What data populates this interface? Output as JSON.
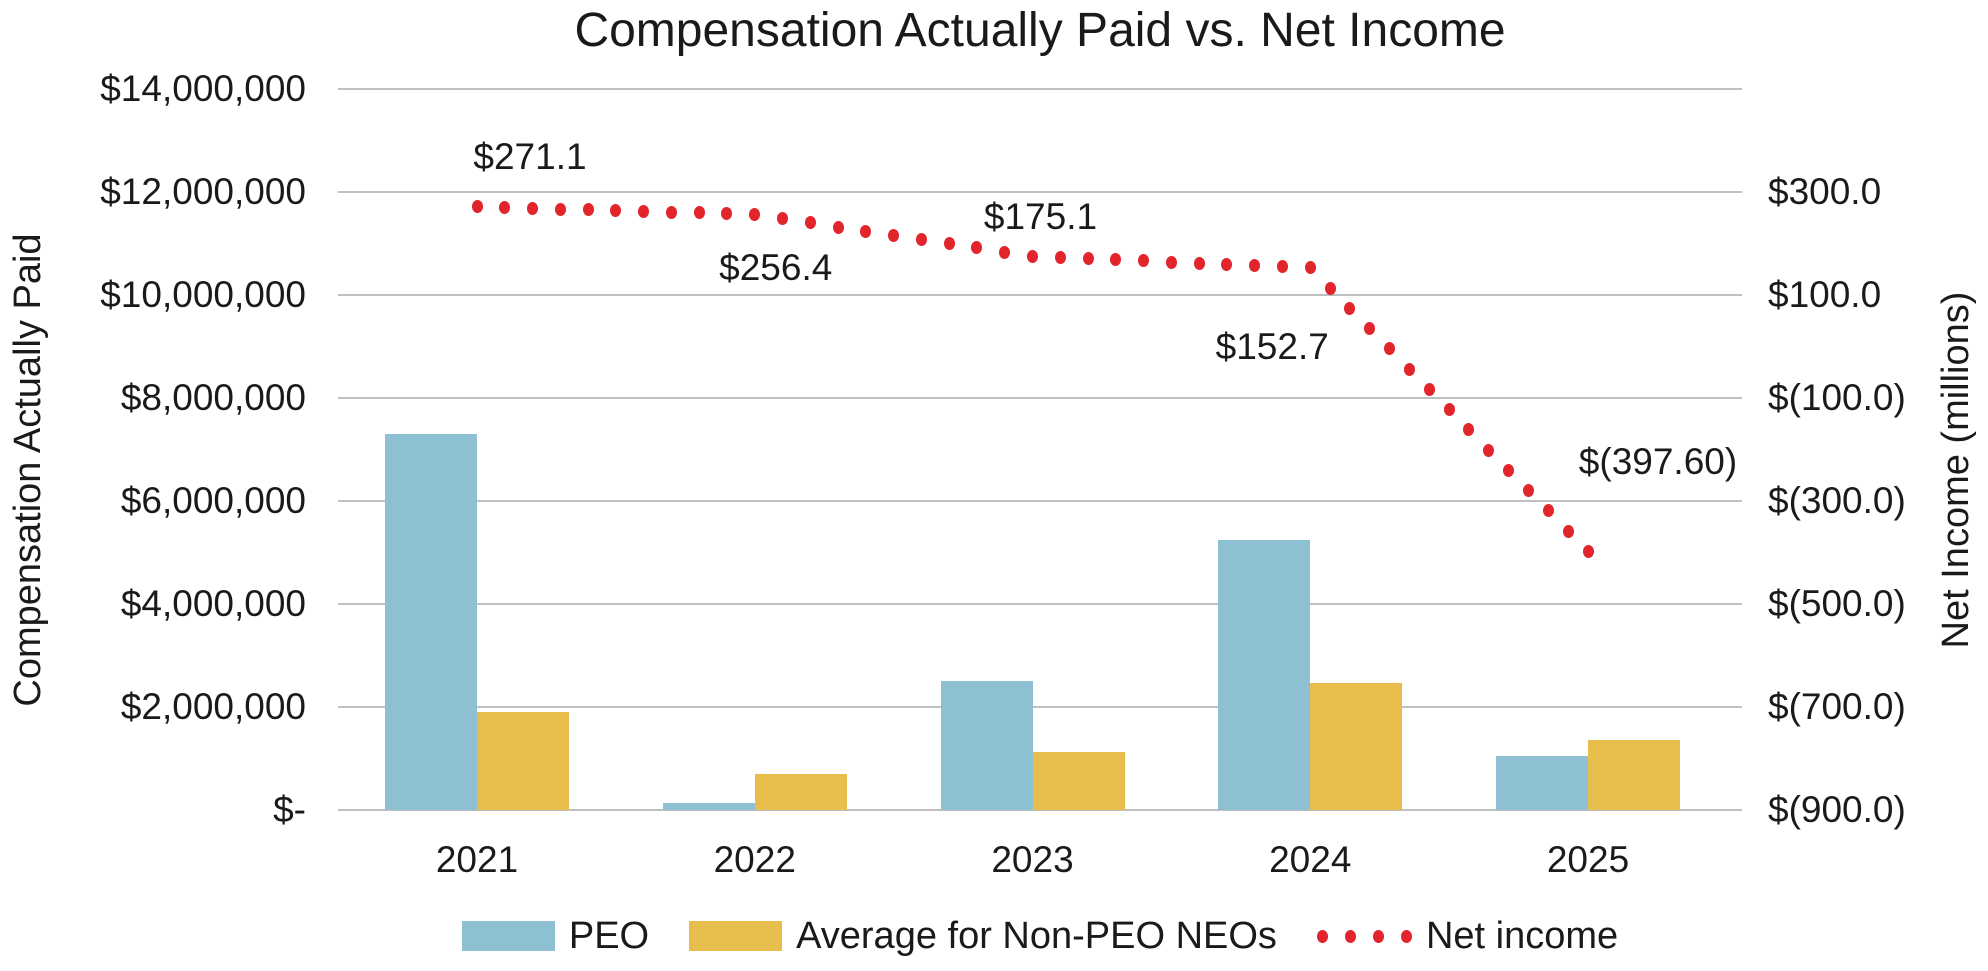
{
  "chart_data": {
    "type": "combo-bar-line",
    "title": "Compensation Actually Paid vs. Net Income",
    "categories": [
      "2021",
      "2022",
      "2023",
      "2024",
      "2025"
    ],
    "series": [
      {
        "name": "PEO",
        "type": "bar",
        "axis": "left",
        "color": "#8EC0D3",
        "values": [
          7300000,
          130000,
          2500000,
          5250000,
          1050000
        ]
      },
      {
        "name": "Average for Non-PEO NEOs",
        "type": "bar",
        "axis": "left",
        "color": "#E7BD4B",
        "values": [
          1900000,
          700000,
          1120000,
          2460000,
          1360000
        ]
      },
      {
        "name": "Net income",
        "type": "dotted-line",
        "axis": "right",
        "color": "#E2242B",
        "values": [
          271.1,
          256.4,
          175.1,
          152.7,
          -397.6
        ],
        "point_labels": [
          "$271.1",
          "$256.4",
          "$175.1",
          "$152.7",
          "$(397.60)"
        ]
      }
    ],
    "left_axis": {
      "title": "Compensation Actually Paid",
      "min": 0,
      "max": 14000000,
      "tick_step": 2000000,
      "tick_labels": [
        "$14,000,000",
        "$12,000,000",
        "$10,000,000",
        "$8,000,000",
        "$6,000,000",
        "$4,000,000",
        "$2,000,000",
        "$-"
      ]
    },
    "right_axis": {
      "title": "Net Income (millions)",
      "min": -900,
      "max": 300,
      "tick_step": 200,
      "tick_labels": [
        "$300.0",
        "$100.0",
        "$(100.0)",
        "$(300.0)",
        "$(500.0)",
        "$(700.0)",
        "$(900.0)"
      ]
    },
    "x_axis": {
      "tick_labels": [
        "2021",
        "2022",
        "2023",
        "2024",
        "2025"
      ]
    },
    "legend": {
      "position": "bottom",
      "entries": [
        {
          "label": "PEO",
          "swatch": "bar",
          "color": "#8EC0D3"
        },
        {
          "label": "Average for Non-PEO NEOs",
          "swatch": "bar",
          "color": "#E7BD4B"
        },
        {
          "label": "Net income",
          "swatch": "dots",
          "color": "#E2242B"
        }
      ]
    },
    "grid": true,
    "gridline_color": "#BFBFBF",
    "text_color": "#1A1A1A",
    "background": "#FFFFFF"
  }
}
